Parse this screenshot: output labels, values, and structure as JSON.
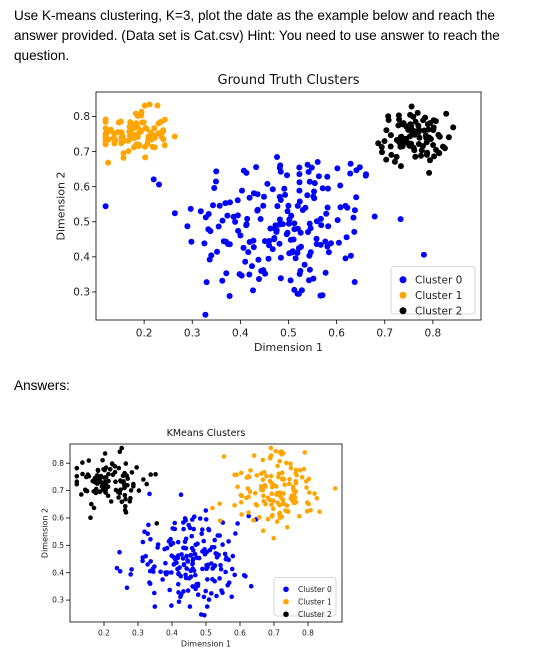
{
  "question": "Use K-means clustering, K=3, plot the date as the example below and reach the answer provided. (Data set is Cat.csv) Hint: You need to use answer to reach the question.",
  "answers_label": "Answers:",
  "colors": {
    "cluster0": "#0000ff",
    "cluster1": "#ffa500",
    "cluster2": "#000000"
  },
  "chart_data": [
    {
      "type": "scatter",
      "title": "Ground Truth Clusters",
      "xlabel": "Dimension 1",
      "ylabel": "Dimension 2",
      "xticks": [
        "0.2",
        "0.3",
        "0.4",
        "0.5",
        "0.6",
        "0.7",
        "0.8"
      ],
      "yticks": [
        "0.3",
        "0.4",
        "0.5",
        "0.6",
        "0.7",
        "0.8"
      ],
      "xlim": [
        0.1,
        0.9
      ],
      "ylim": [
        0.22,
        0.87
      ],
      "legend": {
        "placement": "bottom-right",
        "entries": [
          "Cluster 0",
          "Cluster 1",
          "Cluster 2"
        ]
      },
      "series": [
        {
          "name": "Cluster 0",
          "color": "#0000ff",
          "center": [
            0.49,
            0.49
          ],
          "spread": [
            0.105,
            0.115
          ],
          "n": 200
        },
        {
          "name": "Cluster 1",
          "color": "#ffa500",
          "center": [
            0.18,
            0.75
          ],
          "spread": [
            0.035,
            0.035
          ],
          "n": 95
        },
        {
          "name": "Cluster 2",
          "color": "#000000",
          "center": [
            0.76,
            0.74
          ],
          "spread": [
            0.035,
            0.035
          ],
          "n": 95
        }
      ]
    },
    {
      "type": "scatter",
      "title": "KMeans Clusters",
      "xlabel": "Dimension 1",
      "ylabel": "Dimension 2",
      "xticks": [
        "0.2",
        "0.3",
        "0.4",
        "0.5",
        "0.6",
        "0.7",
        "0.8"
      ],
      "yticks": [
        "0.3",
        "0.4",
        "0.5",
        "0.6",
        "0.7",
        "0.8"
      ],
      "xlim": [
        0.1,
        0.9
      ],
      "ylim": [
        0.22,
        0.87
      ],
      "legend": {
        "placement": "bottom-right",
        "entries": [
          "Cluster 0",
          "Cluster 1",
          "Cluster 2"
        ]
      },
      "series": [
        {
          "name": "Cluster 0",
          "color": "#0000ff",
          "center": [
            0.45,
            0.44
          ],
          "spread": [
            0.09,
            0.08
          ],
          "n": 190
        },
        {
          "name": "Cluster 1",
          "color": "#ffa500",
          "center": [
            0.7,
            0.7
          ],
          "spread": [
            0.07,
            0.07
          ],
          "n": 140
        },
        {
          "name": "Cluster 2",
          "color": "#000000",
          "center": [
            0.22,
            0.73
          ],
          "spread": [
            0.05,
            0.045
          ],
          "n": 110
        }
      ]
    }
  ]
}
